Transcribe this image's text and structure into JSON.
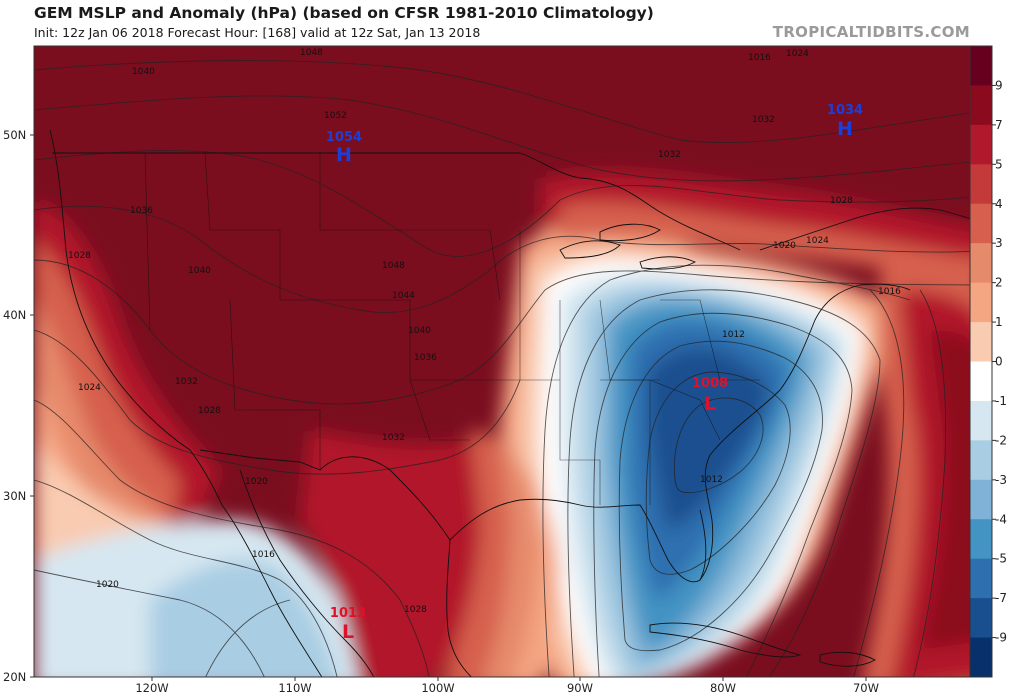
{
  "header": {
    "title": "GEM MSLP and Anomaly (hPa) (based on CFSR 1981-2010 Climatology)",
    "subtitle": "Init: 12z Jan 06 2018   Forecast Hour: [168]   valid at 12z Sat, Jan 13 2018",
    "site": "TROPICALTIDBITS.COM"
  },
  "axes": {
    "lat_labels": [
      "50N",
      "40N",
      "30N",
      "20N"
    ],
    "lon_labels": [
      "120W",
      "110W",
      "100W",
      "90W",
      "80W",
      "70W"
    ]
  },
  "colorbar": {
    "ticks": [
      "9",
      "7",
      "5",
      "4",
      "3",
      "2",
      "1",
      "0",
      "-1",
      "-2",
      "-3",
      "-4",
      "-5",
      "-7",
      "-9"
    ],
    "colors": [
      "#67001f",
      "#8c0a1e",
      "#b2182b",
      "#c43a3a",
      "#d6604d",
      "#e68a6c",
      "#f4a582",
      "#f9cbb0",
      "#ffffff",
      "#d6e7f1",
      "#a9cde3",
      "#7fb2d6",
      "#4393c3",
      "#2e6fb0",
      "#1a4f8f",
      "#08306b"
    ]
  },
  "pressure_centers": [
    {
      "type": "H",
      "value": "1054",
      "color": "#1c3fd9"
    },
    {
      "type": "H",
      "value": "1034",
      "color": "#1c3fd9"
    },
    {
      "type": "L",
      "value": "1008",
      "color": "#e0102a"
    },
    {
      "type": "L",
      "value": "1013",
      "color": "#e0102a"
    }
  ],
  "isobar_labels": [
    "1048",
    "1040",
    "1052",
    "1036",
    "1028",
    "1024",
    "1040",
    "1044",
    "1048",
    "1040",
    "1036",
    "1032",
    "1032",
    "1028",
    "1032",
    "1024",
    "1020",
    "1028",
    "1032",
    "1024",
    "1020",
    "1016",
    "1012",
    "1012",
    "1016",
    "1020",
    "1028",
    "1016"
  ]
}
